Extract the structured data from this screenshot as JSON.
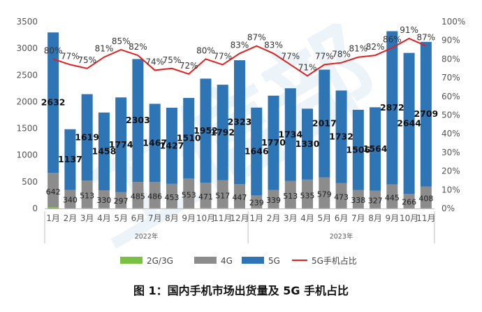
{
  "caption": "图 1：国内手机市场出货量及 5G 手机占比",
  "chart_data": {
    "type": "bar",
    "stacked": true,
    "categories": [
      "1月",
      "2月",
      "3月",
      "4月",
      "5月",
      "6月",
      "7月",
      "8月",
      "9月",
      "10月",
      "11月",
      "12月",
      "1月",
      "2月",
      "3月",
      "4月",
      "5月",
      "6月",
      "7月",
      "8月",
      "9月",
      "10月",
      "11月"
    ],
    "groups": [
      {
        "label": "2022年",
        "count": 12
      },
      {
        "label": "2023年",
        "count": 11
      }
    ],
    "series": [
      {
        "name": "2G/3G",
        "color": "#7ac143",
        "values": [
          25,
          8,
          10,
          10,
          10,
          12,
          8,
          8,
          8,
          10,
          10,
          8,
          5,
          5,
          5,
          5,
          5,
          5,
          5,
          5,
          5,
          5,
          5
        ]
      },
      {
        "name": "4G",
        "color": "#8c8c8c",
        "values": [
          642,
          340,
          513,
          330,
          297,
          485,
          486,
          453,
          553,
          471,
          517,
          447,
          239,
          339,
          513,
          535,
          579,
          473,
          338,
          327,
          445,
          266,
          408
        ]
      },
      {
        "name": "5G",
        "color": "#2e75b6",
        "values": [
          2632,
          1137,
          1619,
          1458,
          1774,
          2303,
          1467,
          1427,
          1510,
          1952,
          1792,
          2323,
          1646,
          1770,
          1734,
          1330,
          2017,
          1732,
          1506,
          1564,
          2872,
          2644,
          2709
        ]
      },
      {
        "name": "5G手机占比",
        "color": "#e02020",
        "axis": "right",
        "values": [
          80,
          77,
          75,
          81,
          85,
          82,
          74,
          75,
          72,
          80,
          77,
          83,
          87,
          83,
          77,
          71,
          77,
          78,
          81,
          82,
          86,
          91,
          87
        ]
      }
    ],
    "y_left": {
      "min": 0,
      "max": 3500,
      "ticks": [
        "0",
        "500",
        "1000",
        "1500",
        "2000",
        "2500",
        "3000",
        "3500"
      ]
    },
    "y_right": {
      "min": 0,
      "max": 100,
      "ticks": [
        "0%",
        "10%",
        "20%",
        "30%",
        "40%",
        "50%",
        "60%",
        "70%",
        "80%",
        "90%",
        "100%"
      ]
    },
    "legend_position": "bottom",
    "watermark_text": "工信部"
  }
}
